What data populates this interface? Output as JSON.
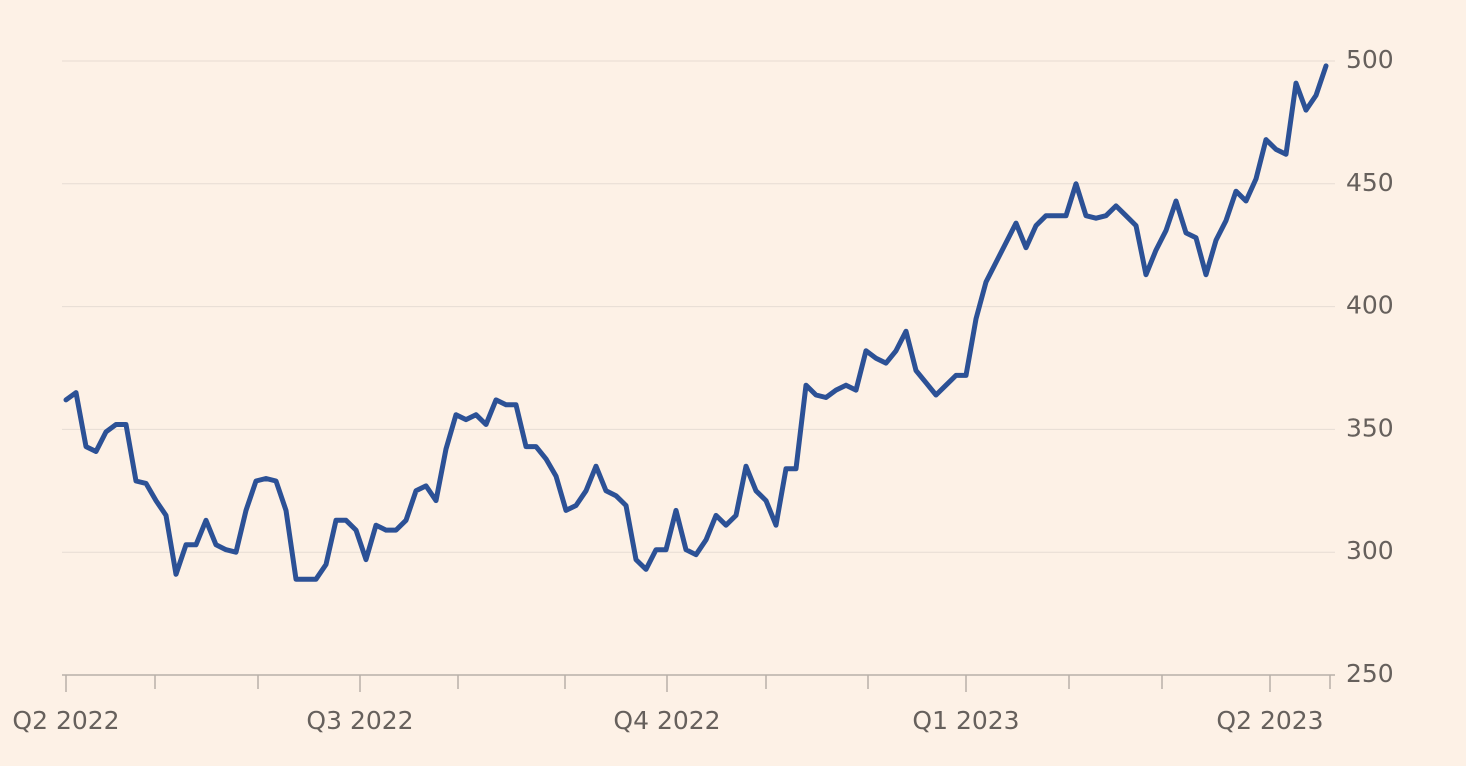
{
  "chart_data": {
    "type": "line",
    "values": [
      362,
      365,
      343,
      341,
      349,
      352,
      352,
      329,
      328,
      321,
      315,
      291,
      303,
      303,
      313,
      303,
      301,
      300,
      317,
      329,
      330,
      329,
      317,
      289,
      289,
      289,
      295,
      313,
      313,
      309,
      297,
      311,
      309,
      309,
      313,
      325,
      327,
      321,
      342,
      356,
      354,
      356,
      352,
      362,
      360,
      360,
      343,
      343,
      338,
      331,
      317,
      319,
      325,
      335,
      325,
      323,
      319,
      297,
      293,
      301,
      301,
      317,
      301,
      299,
      305,
      315,
      311,
      315,
      335,
      325,
      321,
      311,
      334,
      334,
      368,
      364,
      363,
      366,
      368,
      366,
      382,
      379,
      377,
      382,
      390,
      374,
      369,
      364,
      368,
      372,
      372,
      395,
      410,
      418,
      426,
      434,
      424,
      433,
      437,
      437,
      437,
      450,
      437,
      436,
      437,
      441,
      437,
      433,
      413,
      423,
      431,
      443,
      430,
      428,
      413,
      427,
      435,
      447,
      443,
      452,
      468,
      464,
      462,
      491,
      480,
      486,
      498
    ],
    "color": "#2c5196",
    "xlim": [
      0,
      126.4
    ],
    "xticks": [
      {
        "value": 0,
        "label": "Q2 2022"
      },
      {
        "value": 29.4,
        "label": "Q3 2022"
      },
      {
        "value": 60.1,
        "label": "Q4 2022"
      },
      {
        "value": 90,
        "label": "Q1 2023"
      },
      {
        "value": 120.4,
        "label": "Q2 2023"
      }
    ],
    "xminor_ticks": [
      8.9,
      19.2,
      39.2,
      49.9,
      70,
      80.2,
      100.3,
      109.6,
      126.4
    ],
    "ylim": [
      250,
      500
    ],
    "yticks": [
      250,
      300,
      350,
      400,
      450,
      500
    ],
    "grid": true
  }
}
